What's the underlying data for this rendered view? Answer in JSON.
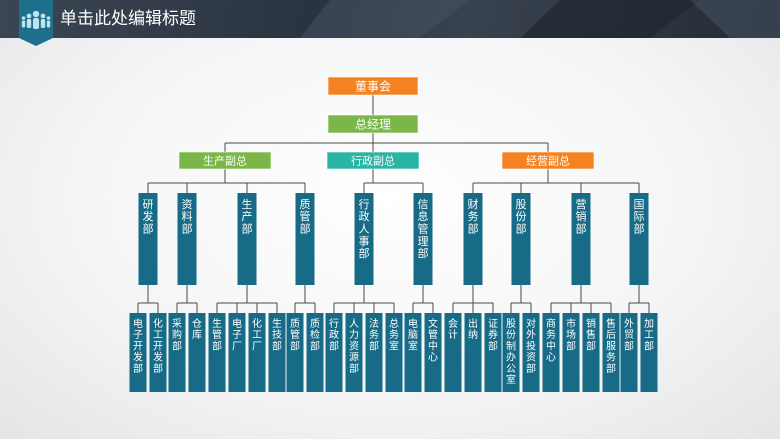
{
  "header": {
    "title": "单击此处编辑标题",
    "badge_icon": "people-group-icon",
    "badge_color": "#1d6f8c"
  },
  "colors": {
    "orange": "#f58220",
    "green": "#7ab648",
    "teal": "#2bb3a3",
    "blue": "#176b87",
    "line": "#4a4a4a"
  },
  "org": {
    "root": "董事会",
    "level1": "总经理",
    "vps": [
      {
        "label": "生产副总",
        "color": "green",
        "departments": [
          {
            "label": "研发部",
            "units": [
              "电子开发部",
              "化工开发部"
            ]
          },
          {
            "label": "资料部",
            "units": [
              "采购部",
              "仓库"
            ]
          },
          {
            "label": "生产部",
            "units": [
              "生管部",
              "电子厂",
              "化工厂",
              "生技部"
            ]
          },
          {
            "label": "质管部",
            "units": [
              "质管部",
              "质检部"
            ]
          }
        ]
      },
      {
        "label": "行政副总",
        "color": "teal",
        "departments": [
          {
            "label": "行政人事部",
            "units": [
              "行政部",
              "人力资源部",
              "法务部",
              "总务室"
            ]
          },
          {
            "label": "信息管理部",
            "units": [
              "电脑室",
              "文管中心"
            ]
          }
        ]
      },
      {
        "label": "经营副总",
        "color": "orange",
        "departments": [
          {
            "label": "财务部",
            "units": [
              "会计",
              "出纳",
              "证券部"
            ]
          },
          {
            "label": "股份部",
            "units": [
              "股份制办公室",
              "对外投资部"
            ]
          },
          {
            "label": "营销部",
            "units": [
              "商务中心",
              "市场部",
              "销售部",
              "售后服务部"
            ]
          },
          {
            "label": "国际部",
            "units": [
              "外贸部",
              "加工部"
            ]
          }
        ]
      }
    ]
  }
}
